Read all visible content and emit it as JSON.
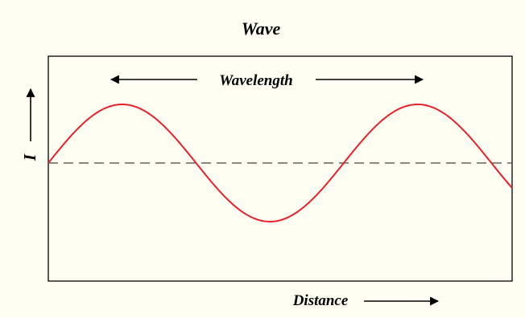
{
  "title": "Wave",
  "wavelength_label": "Wavelength",
  "y_axis_label": "I",
  "x_axis_label": "Distance",
  "colors": {
    "background": "#fffef2",
    "wave": "#e8202a",
    "frame": "#000000",
    "baseline": "#444444"
  },
  "chart_data": {
    "type": "line",
    "title": "Wave",
    "xlabel": "Distance",
    "ylabel": "I",
    "annotations": [
      "Wavelength"
    ],
    "series": [
      {
        "shape": "sine",
        "amplitude": 1,
        "cycles_shown": 1.57,
        "start_phase": 0
      }
    ],
    "baseline": "dashed",
    "grid": false
  }
}
